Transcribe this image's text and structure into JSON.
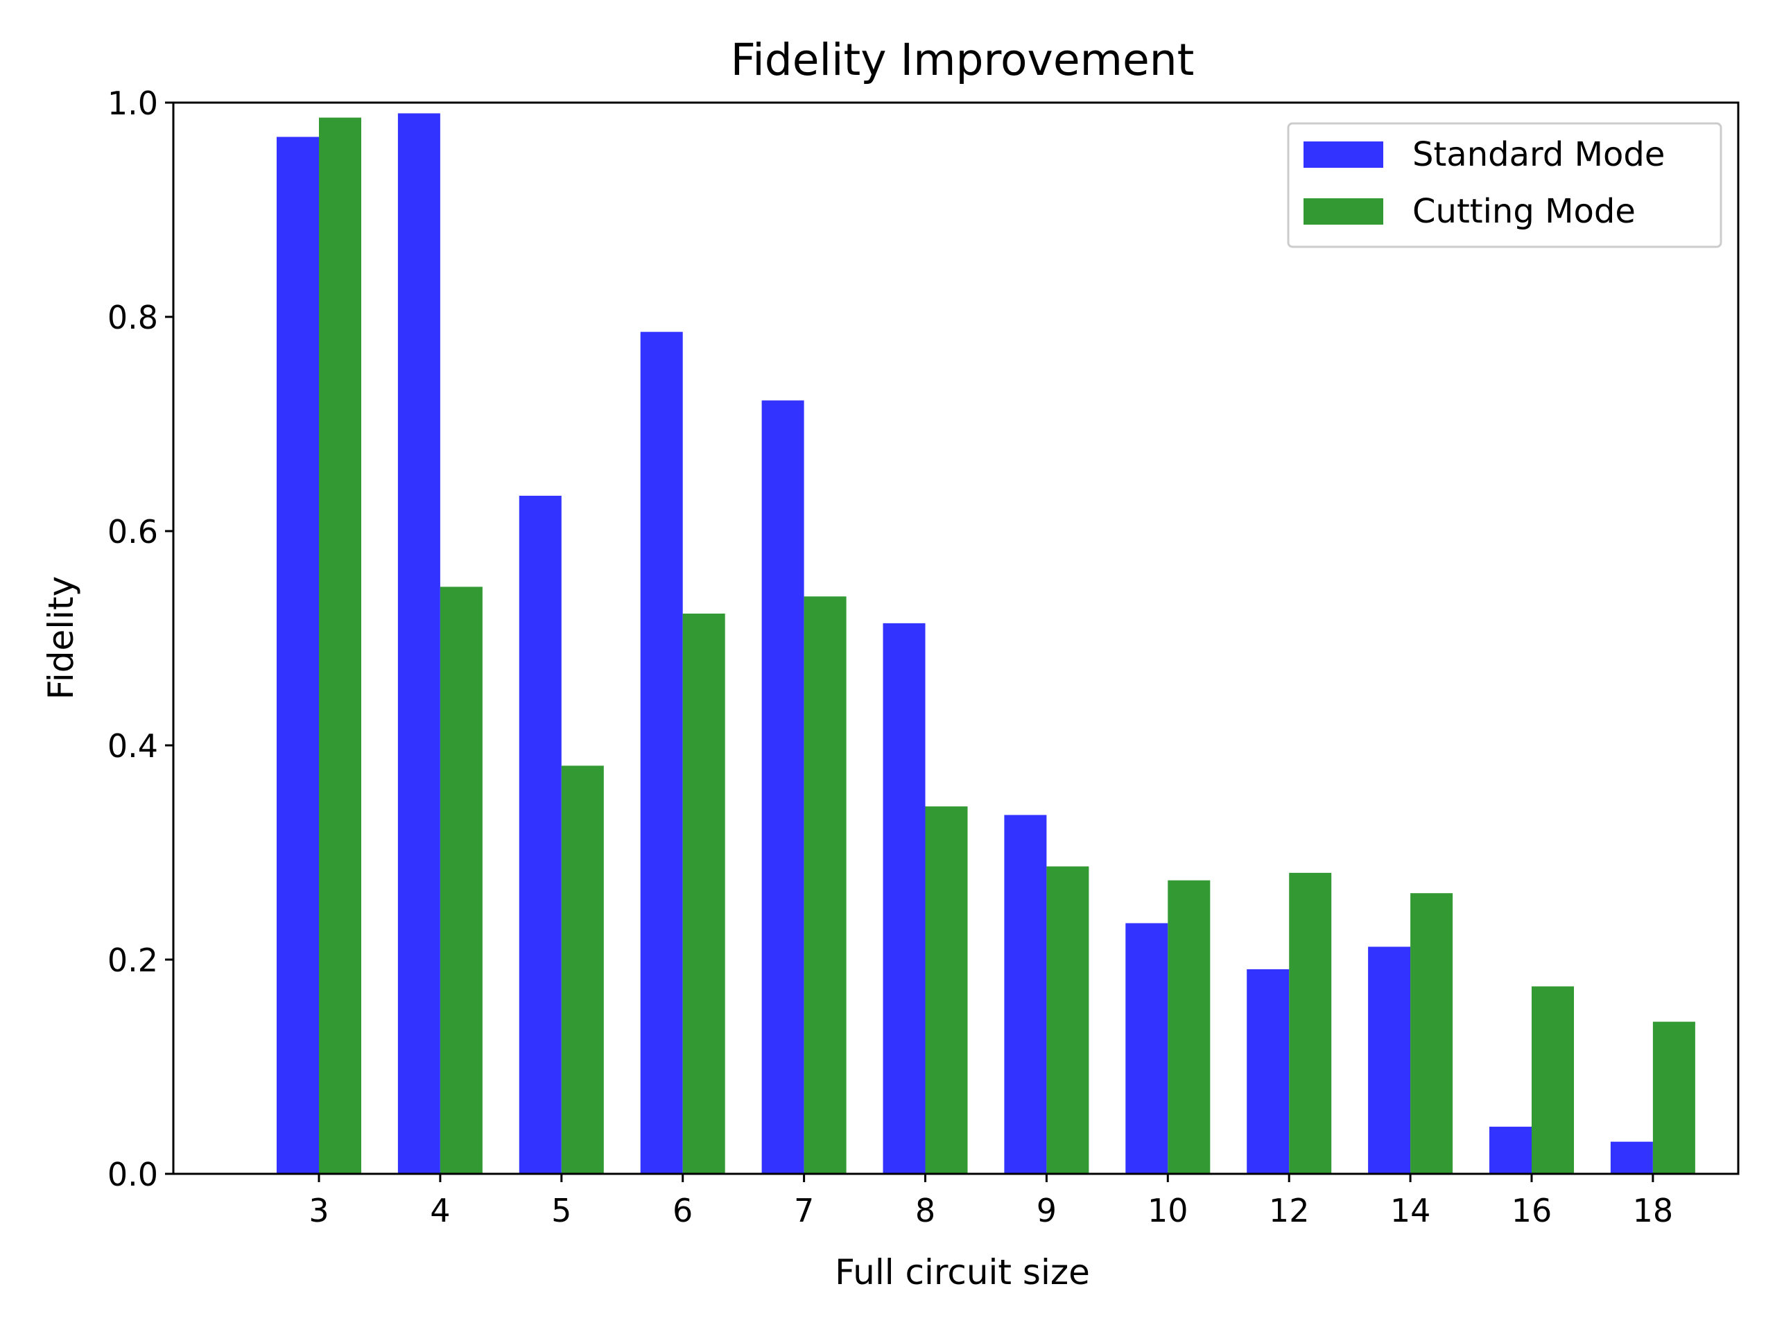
{
  "chart_data": {
    "type": "bar",
    "title": "Fidelity Improvement",
    "xlabel": "Full circuit size",
    "ylabel": "Fidelity",
    "categories": [
      "3",
      "4",
      "5",
      "6",
      "7",
      "8",
      "9",
      "10",
      "12",
      "14",
      "16",
      "18"
    ],
    "series": [
      {
        "name": "Standard Mode",
        "color": "#3333ff",
        "values": [
          0.968,
          0.99,
          0.633,
          0.786,
          0.722,
          0.514,
          0.335,
          0.234,
          0.191,
          0.212,
          0.044,
          0.03
        ]
      },
      {
        "name": "Cutting Mode",
        "color": "#339933",
        "values": [
          0.986,
          0.548,
          0.381,
          0.523,
          0.539,
          0.343,
          0.287,
          0.274,
          0.281,
          0.262,
          0.175,
          0.142
        ]
      }
    ],
    "ylim": [
      0,
      1.0
    ],
    "yticks": [
      "0.0",
      "0.2",
      "0.4",
      "0.6",
      "0.8",
      "1.0"
    ],
    "grid": false,
    "legend_position": "top-right"
  }
}
